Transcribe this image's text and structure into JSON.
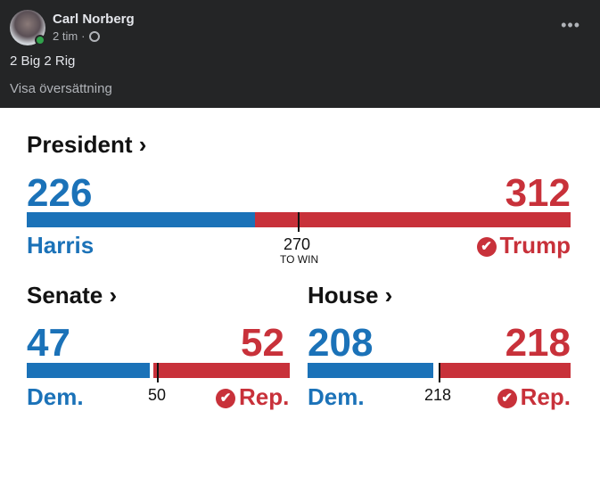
{
  "post": {
    "author": "Carl Norberg",
    "time": "2 tim",
    "separator": "·",
    "text": "2 Big 2 Rig",
    "translate": "Visa översättning",
    "more": "•••"
  },
  "president": {
    "title": "President ›",
    "dem_value": "226",
    "rep_value": "312",
    "dem_name": "Harris",
    "rep_name": "Trump",
    "threshold": "270",
    "threshold_label": "TO WIN",
    "dem": 226,
    "rep": 312,
    "total": 538
  },
  "senate": {
    "title": "Senate ›",
    "dem_value": "47",
    "rep_value": "52",
    "dem_name": "Dem.",
    "rep_name": "Rep.",
    "threshold": "50",
    "dem": 47,
    "rep": 52,
    "total": 100
  },
  "house": {
    "title": "House ›",
    "dem_value": "208",
    "rep_value": "218",
    "dem_name": "Dem.",
    "rep_name": "Rep.",
    "threshold": "218",
    "dem": 208,
    "rep": 218,
    "total": 435
  },
  "colors": {
    "dem": "#1b72b8",
    "rep": "#c8313a"
  },
  "check_icon": "✔"
}
